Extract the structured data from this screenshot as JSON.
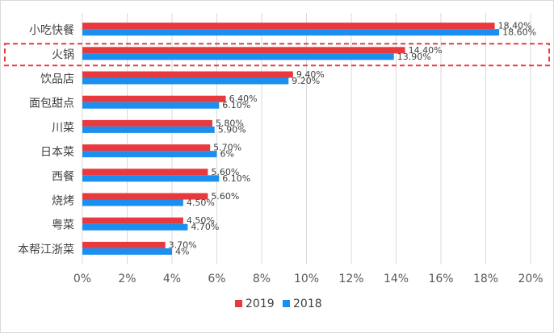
{
  "chart_data": {
    "type": "bar",
    "orientation": "horizontal",
    "categories": [
      "小吃快餐",
      "火锅",
      "饮品店",
      "面包甜点",
      "川菜",
      "日本菜",
      "西餐",
      "烧烤",
      "粤菜",
      "本帮江浙菜"
    ],
    "series": [
      {
        "name": "2019",
        "color": "#e8393f",
        "values": [
          18.4,
          14.4,
          9.4,
          6.4,
          5.8,
          5.7,
          5.6,
          5.6,
          4.5,
          3.7
        ],
        "labels": [
          "18.40%",
          "14.40%",
          "9.40%",
          "6.40%",
          "5.80%",
          "5.70%",
          "5.60%",
          "5.60%",
          "4.50%",
          "3.70%"
        ]
      },
      {
        "name": "2018",
        "color": "#1a8fef",
        "values": [
          18.6,
          13.9,
          9.2,
          6.1,
          5.9,
          6.0,
          6.1,
          4.5,
          4.7,
          4.0
        ],
        "labels": [
          "18.60%",
          "13.90%",
          "9.20%",
          "6.10%",
          "5.90%",
          "6%",
          "6.10%",
          "4.50%",
          "4.70%",
          "4%"
        ]
      }
    ],
    "xlim": [
      0,
      20
    ],
    "xticks": [
      "0%",
      "2%",
      "4%",
      "6%",
      "8%",
      "10%",
      "12%",
      "14%",
      "16%",
      "18%",
      "20%"
    ],
    "grid": "vertical",
    "legend_position": "bottom",
    "highlighted_category": "火锅",
    "highlight_color": "#e8393f",
    "frame_color": "#d9d9d9",
    "grid_color": "#d9d9d9"
  }
}
